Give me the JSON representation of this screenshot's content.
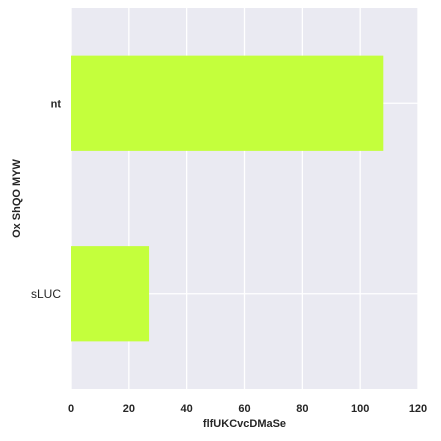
{
  "chart_data": {
    "type": "bar",
    "orientation": "horizontal",
    "categories": [
      "nt",
      "sLUC"
    ],
    "values": [
      108,
      27
    ],
    "xlabel": "flfUKCvcDMaSe",
    "ylabel": "Ox ShQO MYW",
    "xlim": [
      0,
      120
    ],
    "xticks": [
      "0",
      "20",
      "40",
      "60",
      "80",
      "100",
      "120"
    ],
    "grid": true,
    "bar_color": "#c4ff3c",
    "background_color": "#eaeaf2",
    "grid_color": "#ffffff"
  }
}
